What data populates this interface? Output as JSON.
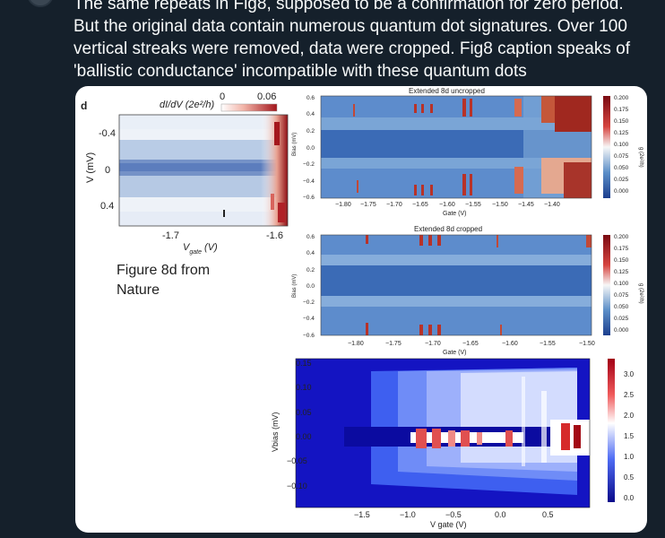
{
  "tweet": {
    "lines": [
      "The same repeats in Fig8, supposed to be a confirmation for zero period.",
      "But the original data contain numerous quantum dot signatures. Over 100",
      "vertical streaks were removed, data were cropped. Fig8 caption speaks of",
      "'ballistic conductance' incompatible with these quantum dots"
    ]
  },
  "figure": {
    "panel_letter": "d",
    "cb_min": "0",
    "cb_max": "0.06",
    "cb_label": "dI/dV (2e²/h)",
    "y_label": "V (mV)",
    "y_ticks": [
      "-0.4",
      "0",
      "0.4"
    ],
    "x_ticks": [
      "-1.7",
      "-1.6"
    ],
    "x_label_main": "V",
    "x_label_sub": "gate",
    "x_label_unit": " (V)",
    "caption_line1": "Figure 8d from",
    "caption_line2": "Nature"
  },
  "uncropped": {
    "title": "Extended 8d uncropped",
    "y_label": "Bias (mV)",
    "y_ticks": [
      "0.6",
      "0.4",
      "0.2",
      "0.0",
      "−0.2",
      "−0.4",
      "−0.6"
    ],
    "x_ticks": [
      "−1.80",
      "−1.75",
      "−1.70",
      "−1.65",
      "−1.60",
      "−1.55",
      "−1.50",
      "−1.45",
      "−1.40"
    ],
    "x_label": "Gate (V)",
    "cb_ticks": [
      "0.200",
      "0.175",
      "0.150",
      "0.125",
      "0.100",
      "0.075",
      "0.050",
      "0.025",
      "0.000"
    ],
    "cb_label": "g (2e²/h)"
  },
  "cropped": {
    "title": "Extended 8d cropped",
    "y_label": "Bias (mV)",
    "y_ticks": [
      "0.6",
      "0.4",
      "0.2",
      "0.0",
      "−0.2",
      "−0.4",
      "−0.6"
    ],
    "x_ticks": [
      "−1.80",
      "−1.75",
      "−1.70",
      "−1.65",
      "−1.60",
      "−1.55",
      "−1.50"
    ],
    "x_label": "Gate (V)",
    "cb_ticks": [
      "0.200",
      "0.175",
      "0.150",
      "0.125",
      "0.100",
      "0.075",
      "0.050",
      "0.025",
      "0.000"
    ],
    "cb_label": "g (2e²/h)"
  },
  "bottom": {
    "y_label": "Vbias (mV)",
    "y_ticks": [
      "0.15",
      "0.10",
      "0.05",
      "0.00",
      "−0.05",
      "−0.10"
    ],
    "x_ticks": [
      "−1.5",
      "−1.0",
      "−0.5",
      "0.0",
      "0.5"
    ],
    "x_label": "V gate (V)",
    "cb_ticks": [
      "3.0",
      "2.5",
      "2.0",
      "1.5",
      "1.0",
      "0.5",
      "0.0"
    ]
  },
  "colors": {
    "background": "#15202b",
    "text": "#f7f9f9",
    "card": "#ffffff"
  }
}
